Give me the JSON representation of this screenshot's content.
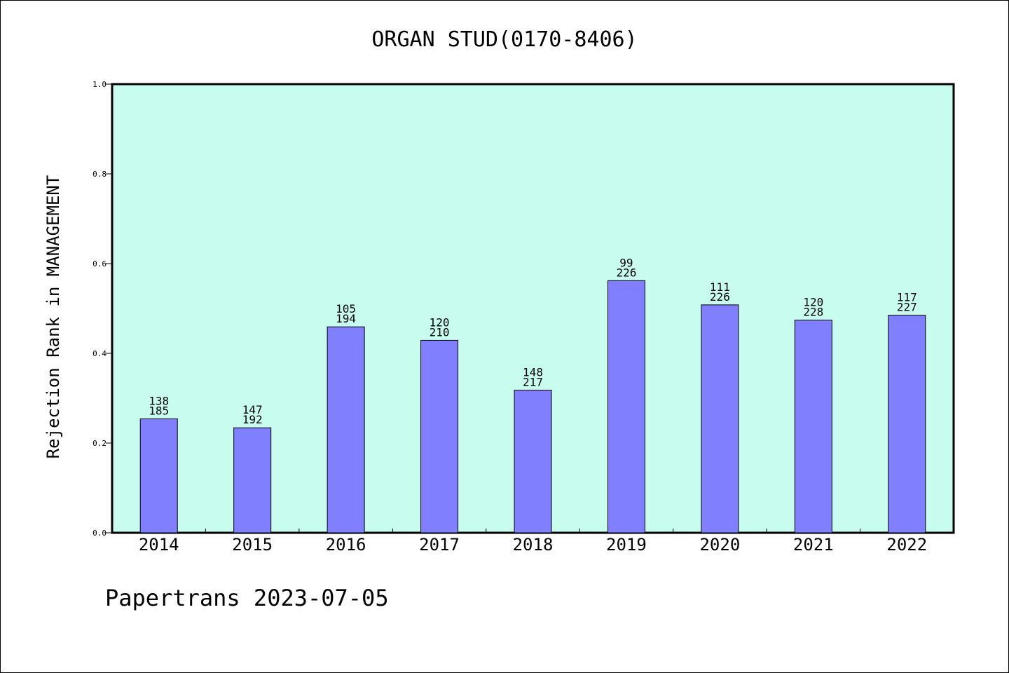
{
  "chart_data": {
    "type": "bar",
    "title": "ORGAN STUD(0170-8406)",
    "ylabel": "Rejection Rank in MANAGEMENT",
    "xlabel": "",
    "categories": [
      "2014",
      "2015",
      "2016",
      "2017",
      "2018",
      "2019",
      "2020",
      "2021",
      "2022"
    ],
    "values": [
      0.254,
      0.234,
      0.459,
      0.429,
      0.318,
      0.562,
      0.508,
      0.474,
      0.485
    ],
    "labels_top": [
      "138",
      "147",
      "105",
      "120",
      "148",
      "99",
      "111",
      "120",
      "117"
    ],
    "labels_bottom": [
      "185",
      "192",
      "194",
      "210",
      "217",
      "226",
      "226",
      "228",
      "227"
    ],
    "ylim": [
      0,
      1.0
    ],
    "yticks": [
      "0.0",
      "0.2",
      "0.4",
      "0.6",
      "0.8",
      "1.0"
    ],
    "grid": false,
    "colors": {
      "plot_background": "#c8fcee",
      "bar_fill": "#8080ff",
      "bar_stroke": "#000000"
    }
  },
  "footer": {
    "credit": "Papertrans 2023-07-05"
  }
}
